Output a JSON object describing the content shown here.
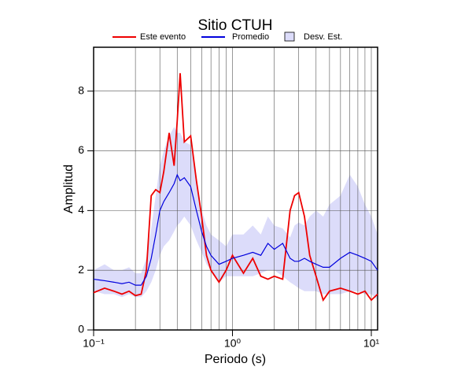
{
  "chart_data": {
    "type": "line",
    "title": "Sitio CTUH",
    "xlabel": "Periodo (s)",
    "ylabel": "Amplitud",
    "xscale": "log",
    "grid": true,
    "legend": "top",
    "xlim": [
      0.1,
      11.1
    ],
    "ylim": [
      0,
      9.47
    ],
    "xticks": [
      {
        "value": 0.1,
        "label": "10⁻¹"
      },
      {
        "value": 1,
        "label": "10⁰"
      },
      {
        "value": 10,
        "label": "10¹"
      }
    ],
    "yticks": [
      0,
      2,
      4,
      6,
      8
    ],
    "x": [
      0.1,
      0.12,
      0.14,
      0.16,
      0.18,
      0.2,
      0.22,
      0.24,
      0.26,
      0.28,
      0.3,
      0.32,
      0.35,
      0.38,
      0.4,
      0.42,
      0.45,
      0.5,
      0.55,
      0.6,
      0.65,
      0.7,
      0.8,
      0.9,
      1.0,
      1.2,
      1.4,
      1.6,
      1.8,
      2.0,
      2.3,
      2.6,
      2.8,
      3.0,
      3.3,
      3.6,
      4.0,
      4.5,
      5,
      6,
      7,
      8,
      9,
      10,
      11.1
    ],
    "series": [
      {
        "name": "Este evento",
        "color": "#ee0000",
        "values": [
          1.25,
          1.4,
          1.3,
          1.2,
          1.3,
          1.15,
          1.2,
          2.0,
          4.5,
          4.7,
          4.6,
          5.3,
          6.6,
          5.5,
          7.0,
          8.6,
          6.3,
          6.5,
          5.0,
          3.8,
          2.5,
          2.0,
          1.6,
          2.0,
          2.5,
          1.9,
          2.4,
          1.8,
          1.7,
          1.8,
          1.7,
          4.0,
          4.5,
          4.6,
          3.8,
          2.5,
          1.8,
          1.0,
          1.3,
          1.4,
          1.3,
          1.2,
          1.3,
          1.0,
          1.2
        ]
      },
      {
        "name": "Promedio",
        "color": "#0000dd",
        "values": [
          1.7,
          1.65,
          1.6,
          1.55,
          1.6,
          1.5,
          1.5,
          1.8,
          2.4,
          3.2,
          4.0,
          4.3,
          4.6,
          4.9,
          5.2,
          5.0,
          5.1,
          4.8,
          4.0,
          3.3,
          2.8,
          2.5,
          2.2,
          2.3,
          2.4,
          2.5,
          2.6,
          2.5,
          2.9,
          2.7,
          2.9,
          2.4,
          2.3,
          2.3,
          2.4,
          2.3,
          2.2,
          2.1,
          2.1,
          2.4,
          2.6,
          2.5,
          2.4,
          2.3,
          2.0
        ]
      },
      {
        "name": "Desv. Est.",
        "color": "#dcdcfa",
        "upper": [
          2.0,
          2.2,
          2.0,
          2.0,
          2.1,
          1.9,
          1.9,
          2.4,
          3.4,
          4.5,
          5.5,
          6.0,
          6.5,
          6.8,
          6.6,
          6.6,
          6.3,
          6.2,
          5.0,
          4.0,
          3.5,
          3.2,
          3.0,
          2.8,
          3.2,
          3.2,
          3.5,
          3.2,
          3.8,
          3.5,
          3.4,
          3.1,
          3.5,
          3.6,
          3.5,
          3.8,
          4.0,
          3.8,
          4.2,
          4.5,
          5.2,
          4.8,
          4.2,
          3.8,
          3.2
        ],
        "lower": [
          1.3,
          1.2,
          1.2,
          1.1,
          1.2,
          1.1,
          1.1,
          1.3,
          1.6,
          2.0,
          2.5,
          2.8,
          3.0,
          3.3,
          3.5,
          3.6,
          3.8,
          3.5,
          3.0,
          2.6,
          2.2,
          2.0,
          1.6,
          1.8,
          1.8,
          1.8,
          1.8,
          1.9,
          2.0,
          2.0,
          1.8,
          1.6,
          1.5,
          1.4,
          1.3,
          1.3,
          1.3,
          1.2,
          1.2,
          1.2,
          1.3,
          1.3,
          1.2,
          1.2,
          1.0
        ]
      }
    ]
  }
}
